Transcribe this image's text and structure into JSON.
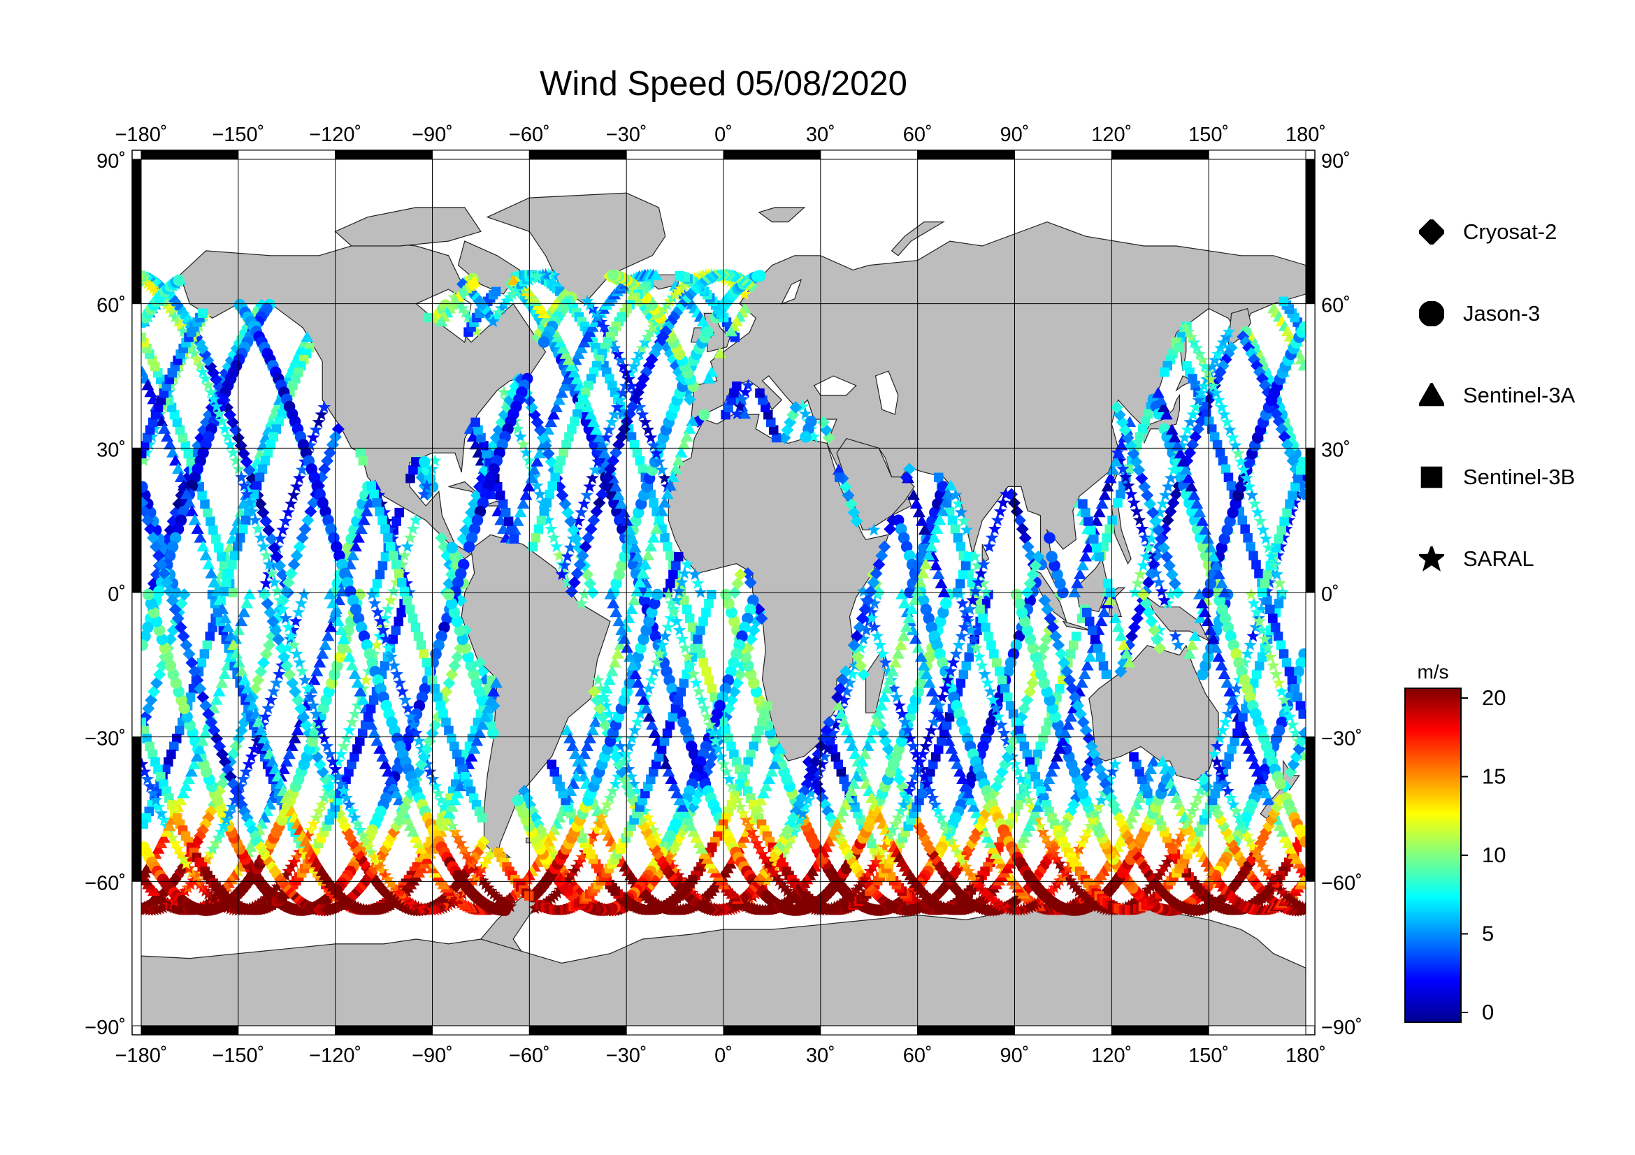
{
  "title": "Wind Speed 05/08/2020",
  "map": {
    "longitude_ticks": [
      -180,
      -150,
      -120,
      -90,
      -60,
      -30,
      0,
      30,
      60,
      90,
      120,
      150,
      180
    ],
    "latitude_ticks": [
      90,
      60,
      30,
      0,
      -30,
      -60,
      -90
    ],
    "longitude_labels": [
      "−180˚",
      "−150˚",
      "−120˚",
      "−90˚",
      "−60˚",
      "−30˚",
      "0˚",
      "30˚",
      "60˚",
      "90˚",
      "120˚",
      "150˚",
      "180˚"
    ],
    "latitude_labels": [
      "90˚",
      "60˚",
      "30˚",
      "0˚",
      "−30˚",
      "−60˚",
      "−90˚"
    ],
    "colors": {
      "land": "#bdbdbd",
      "ocean": "#ffffff",
      "grid": "#000000"
    }
  },
  "legend": {
    "items": [
      {
        "label": "Cryosat-2",
        "symbol": "diamond"
      },
      {
        "label": "Jason-3",
        "symbol": "circle"
      },
      {
        "label": "Sentinel-3A",
        "symbol": "triangle"
      },
      {
        "label": "Sentinel-3B",
        "symbol": "square"
      },
      {
        "label": "SARAL",
        "symbol": "star"
      }
    ]
  },
  "colorbar": {
    "unit": "m/s",
    "min": 0,
    "max": 20,
    "tick_values": [
      0,
      5,
      10,
      15,
      20
    ],
    "tick_labels": [
      "0",
      "5",
      "10",
      "15",
      "20"
    ],
    "colormap": [
      "#00008f",
      "#0000ff",
      "#0080ff",
      "#00ffff",
      "#80ff80",
      "#ffff00",
      "#ff8000",
      "#ff0000",
      "#800000"
    ]
  }
}
